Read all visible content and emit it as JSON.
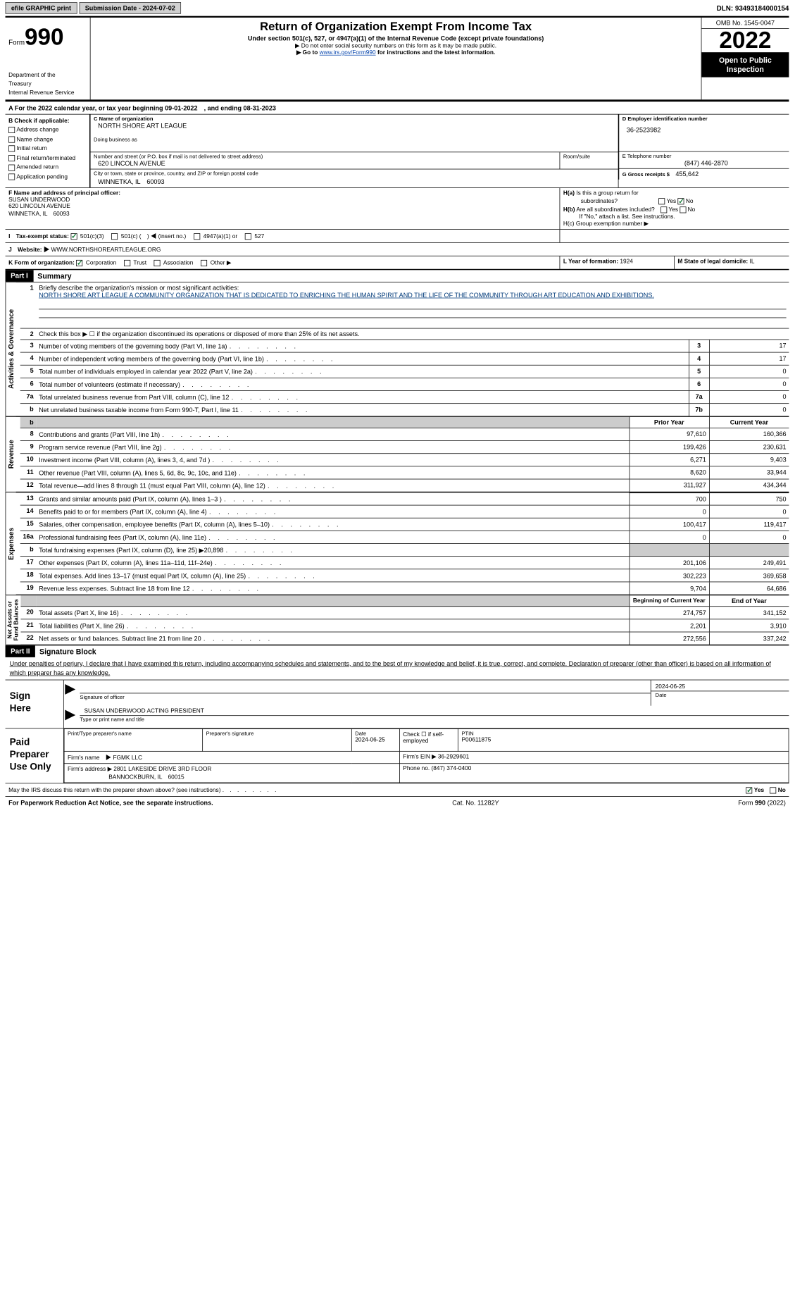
{
  "top": {
    "efile": "efile GRAPHIC print",
    "sub_date_label": "Submission Date - 2024-07-02",
    "dln_label": "DLN: 93493184000154"
  },
  "header": {
    "form_word": "Form",
    "form_num": "990",
    "dept": "Department of the Treasury\nInternal Revenue Service",
    "title": "Return of Organization Exempt From Income Tax",
    "sub": "Under section 501(c), 527, or 4947(a)(1) of the Internal Revenue Code (except private foundations)",
    "note1": "▶ Do not enter social security numbers on this form as it may be made public.",
    "note2_pre": "▶ Go to ",
    "note2_link": "www.irs.gov/Form990",
    "note2_post": " for instructions and the latest information.",
    "omb": "OMB No. 1545-0047",
    "year": "2022",
    "otp": "Open to Public Inspection"
  },
  "rowA": "A For the 2022 calendar year, or tax year beginning 09-01-2022　, and ending 08-31-2023",
  "secB": {
    "label": "B Check if applicable:",
    "items": [
      "Address change",
      "Name change",
      "Initial return",
      "Final return/terminated",
      "Amended return",
      "Application pending"
    ]
  },
  "secC": {
    "name_lbl": "C Name of organization",
    "name_val": "NORTH SHORE ART LEAGUE",
    "dba_lbl": "Doing business as",
    "addr_lbl": "Number and street (or P.O. box if mail is not delivered to street address)",
    "room_lbl": "Room/suite",
    "addr_val": "620 LINCOLN AVENUE",
    "city_lbl": "City or town, state or province, country, and ZIP or foreign postal code",
    "city_val": "WINNETKA, IL　60093"
  },
  "secD": {
    "lbl": "D Employer identification number",
    "val": "36-2523982"
  },
  "secE": {
    "lbl": "E Telephone number",
    "val": "(847) 446-2870"
  },
  "secG": {
    "lbl": "G Gross receipts $",
    "val": "455,642"
  },
  "secF": {
    "lbl": "F Name and address of principal officer:",
    "name": "SUSAN UNDERWOOD",
    "addr1": "620 LINCOLN AVENUE",
    "addr2": "WINNETKA, IL　60093"
  },
  "secH": {
    "a": "H(a) Is this a group return for subordinates?",
    "b": "H(b) Are all subordinates included?",
    "note": "If \"No,\" attach a list. See instructions.",
    "c": "H(c) Group exemption number ▶"
  },
  "secI": {
    "lbl": "I　Tax-exempt status:",
    "o1": "501(c)(3)",
    "o2": "501(c) (　) ◀ (insert no.)",
    "o3": "4947(a)(1) or",
    "o4": "527"
  },
  "secJ": {
    "lbl": "J　Website: ▶",
    "val": "WWW.NORTHSHOREARTLEAGUE.ORG"
  },
  "secK": {
    "lbl": "K Form of organization:",
    "o1": "Corporation",
    "o2": "Trust",
    "o3": "Association",
    "o4": "Other ▶"
  },
  "secL": {
    "lbl": "L Year of formation:",
    "val": "1924"
  },
  "secM": {
    "lbl": "M State of legal domicile:",
    "val": "IL"
  },
  "part1": {
    "hdr": "Part I",
    "title": "Summary"
  },
  "summary": {
    "q1_lbl": "Briefly describe the organization's mission or most significant activities:",
    "q1_txt": "NORTH SHORE ART LEAGUE A COMMUNITY ORGANIZATION THAT IS DEDICATED TO ENRICHING THE HUMAN SPIRIT AND THE LIFE OF THE COMMUNITY THROUGH ART EDUCATION AND EXHIBITIONS.",
    "q2": "Check this box ▶ ☐ if the organization discontinued its operations or disposed of more than 25% of its net assets.",
    "rows_a": [
      {
        "n": "3",
        "d": "Number of voting members of the governing body (Part VI, line 1a)",
        "b": "3",
        "v": "17"
      },
      {
        "n": "4",
        "d": "Number of independent voting members of the governing body (Part VI, line 1b)",
        "b": "4",
        "v": "17"
      },
      {
        "n": "5",
        "d": "Total number of individuals employed in calendar year 2022 (Part V, line 2a)",
        "b": "5",
        "v": "0"
      },
      {
        "n": "6",
        "d": "Total number of volunteers (estimate if necessary)",
        "b": "6",
        "v": "0"
      },
      {
        "n": "7a",
        "d": "Total unrelated business revenue from Part VIII, column (C), line 12",
        "b": "7a",
        "v": "0"
      },
      {
        "n": "b",
        "d": "Net unrelated business taxable income from Form 990-T, Part I, line 11",
        "b": "7b",
        "v": "0"
      }
    ],
    "col_py": "Prior Year",
    "col_cy": "Current Year",
    "rows_rev": [
      {
        "n": "8",
        "d": "Contributions and grants (Part VIII, line 1h)",
        "py": "97,610",
        "cy": "160,366"
      },
      {
        "n": "9",
        "d": "Program service revenue (Part VIII, line 2g)",
        "py": "199,426",
        "cy": "230,631"
      },
      {
        "n": "10",
        "d": "Investment income (Part VIII, column (A), lines 3, 4, and 7d )",
        "py": "6,271",
        "cy": "9,403"
      },
      {
        "n": "11",
        "d": "Other revenue (Part VIII, column (A), lines 5, 6d, 8c, 9c, 10c, and 11e)",
        "py": "8,620",
        "cy": "33,944"
      },
      {
        "n": "12",
        "d": "Total revenue—add lines 8 through 11 (must equal Part VIII, column (A), line 12)",
        "py": "311,927",
        "cy": "434,344"
      }
    ],
    "rows_exp": [
      {
        "n": "13",
        "d": "Grants and similar amounts paid (Part IX, column (A), lines 1–3 )",
        "py": "700",
        "cy": "750"
      },
      {
        "n": "14",
        "d": "Benefits paid to or for members (Part IX, column (A), line 4)",
        "py": "0",
        "cy": "0"
      },
      {
        "n": "15",
        "d": "Salaries, other compensation, employee benefits (Part IX, column (A), lines 5–10)",
        "py": "100,417",
        "cy": "119,417"
      },
      {
        "n": "16a",
        "d": "Professional fundraising fees (Part IX, column (A), line 11e)",
        "py": "0",
        "cy": "0"
      },
      {
        "n": "b",
        "d": "Total fundraising expenses (Part IX, column (D), line 25) ▶20,898",
        "py": "__shade__",
        "cy": "__shade__"
      },
      {
        "n": "17",
        "d": "Other expenses (Part IX, column (A), lines 11a–11d, 11f–24e)",
        "py": "201,106",
        "cy": "249,491"
      },
      {
        "n": "18",
        "d": "Total expenses. Add lines 13–17 (must equal Part IX, column (A), line 25)",
        "py": "302,223",
        "cy": "369,658"
      },
      {
        "n": "19",
        "d": "Revenue less expenses. Subtract line 18 from line 12",
        "py": "9,704",
        "cy": "64,686"
      }
    ],
    "col_bcy": "Beginning of Current Year",
    "col_eoy": "End of Year",
    "rows_na": [
      {
        "n": "20",
        "d": "Total assets (Part X, line 16)",
        "py": "274,757",
        "cy": "341,152"
      },
      {
        "n": "21",
        "d": "Total liabilities (Part X, line 26)",
        "py": "2,201",
        "cy": "3,910"
      },
      {
        "n": "22",
        "d": "Net assets or fund balances. Subtract line 21 from line 20",
        "py": "272,556",
        "cy": "337,242"
      }
    ],
    "side_ag": "Activities & Governance",
    "side_rev": "Revenue",
    "side_exp": "Expenses",
    "side_na": "Net Assets or Fund Balances"
  },
  "part2": {
    "hdr": "Part II",
    "title": "Signature Block"
  },
  "sig": {
    "decl": "Under penalties of perjury, I declare that I have examined this return, including accompanying schedules and statements, and to the best of my knowledge and belief, it is true, correct, and complete. Declaration of preparer (other than officer) is based on all information of which preparer has any knowledge.",
    "here": "Sign Here",
    "off_sig": "Signature of officer",
    "date": "Date",
    "date_v": "2024-06-25",
    "name": "SUSAN UNDERWOOD  ACTING PRESIDENT",
    "name_lbl": "Type or print name and title"
  },
  "prep": {
    "title": "Paid Preparer Use Only",
    "c1": "Print/Type preparer's name",
    "c2": "Preparer's signature",
    "c3": "Date",
    "c3v": "2024-06-25",
    "c4": "Check ☐ if self-employed",
    "c5": "PTIN",
    "c5v": "P00611875",
    "firm_lbl": "Firm's name　▶",
    "firm_v": "FGMK LLC",
    "ein_lbl": "Firm's EIN ▶",
    "ein_v": "36-2929601",
    "addr_lbl": "Firm's address ▶",
    "addr_v1": "2801 LAKESIDE DRIVE 3RD FLOOR",
    "addr_v2": "BANNOCKBURN, IL　60015",
    "ph_lbl": "Phone no.",
    "ph_v": "(847) 374-0400"
  },
  "discuss": "May the IRS discuss this return with the preparer shown above? (see instructions)",
  "footer": {
    "pra": "For Paperwork Reduction Act Notice, see the separate instructions.",
    "cat": "Cat. No. 11282Y",
    "form": "Form 990 (2022)"
  }
}
